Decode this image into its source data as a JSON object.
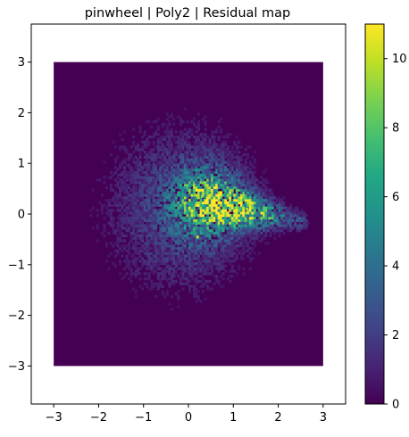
{
  "chart_data": {
    "type": "heatmap",
    "title": "pinwheel | Poly2 | Residual map",
    "xlabel": "",
    "ylabel": "",
    "xlim": [
      -3.5,
      3.5
    ],
    "ylim": [
      -3.75,
      3.75
    ],
    "extent": {
      "x": [
        -3,
        3
      ],
      "y": [
        -3,
        3
      ]
    },
    "grid_bins": 120,
    "colormap": "viridis",
    "colorbar": {
      "vmin": 0,
      "vmax": 11,
      "ticks": [
        0,
        2,
        4,
        6,
        8,
        10
      ]
    },
    "x_ticks": [
      -3,
      -2,
      -1,
      0,
      1,
      2,
      3
    ],
    "y_ticks": [
      -3,
      -2,
      -1,
      0,
      1,
      2,
      3
    ],
    "grid": false,
    "background_value": 0,
    "features": [
      {
        "kind": "diffuse_cloud",
        "center": [
          -0.2,
          0.1
        ],
        "spread": [
          1.1,
          1.1
        ],
        "peak": 2.2
      },
      {
        "kind": "core_blob",
        "center": [
          0.4,
          0.2
        ],
        "spread": [
          0.55,
          0.5
        ],
        "peak": 4.5
      },
      {
        "kind": "arm",
        "from": [
          0.2,
          0.3
        ],
        "to": [
          2.5,
          -0.15
        ],
        "width": 0.12,
        "peak": 8
      },
      {
        "kind": "hotspot",
        "at": [
          0.75,
          0.05
        ],
        "value": 11
      },
      {
        "kind": "hotspot",
        "at": [
          1.3,
          0.1
        ],
        "value": 9.5
      },
      {
        "kind": "hotspot",
        "at": [
          0.2,
          -0.45
        ],
        "value": 10
      },
      {
        "kind": "hotspot",
        "at": [
          0.3,
          0.35
        ],
        "value": 9
      },
      {
        "kind": "hotspot",
        "at": [
          1.8,
          -0.08
        ],
        "value": 8.5
      }
    ]
  }
}
